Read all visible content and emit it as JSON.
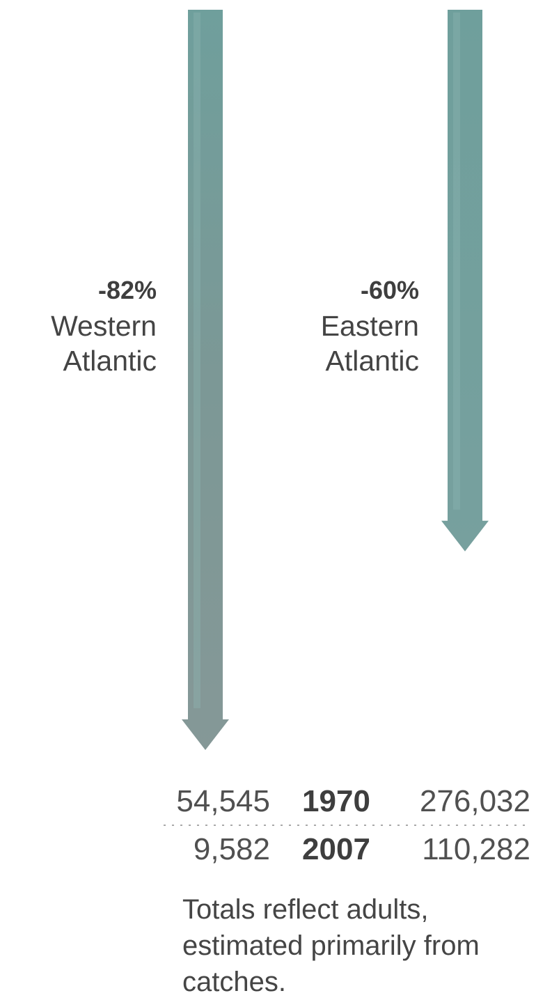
{
  "chart_data": {
    "type": "bar",
    "orientation": "vertical-arrows-decline",
    "series": [
      {
        "name": "Western Atlantic",
        "name_lines": [
          "Western",
          "Atlantic"
        ],
        "change_label": "-82%",
        "change_percent": -82,
        "values": [
          54545,
          9582
        ],
        "value_labels": [
          "54,545",
          "9,582"
        ]
      },
      {
        "name": "Eastern Atlantic",
        "name_lines": [
          "Eastern",
          "Atlantic"
        ],
        "change_label": "-60%",
        "change_percent": -60,
        "values": [
          276032,
          110282
        ],
        "value_labels": [
          "276,032",
          "110,282"
        ]
      }
    ],
    "categories": [
      "1970",
      "2007"
    ],
    "note": "Totals reflect adults, estimated primarily from catches.",
    "colors": {
      "western_arrow": "#7f9c9a",
      "eastern_arrow": "#6f9e9c",
      "arrow_highlight": "#8fb8b5",
      "text": "#444444",
      "rule": "#9a9a9a"
    },
    "legend": "none",
    "grid": false
  }
}
